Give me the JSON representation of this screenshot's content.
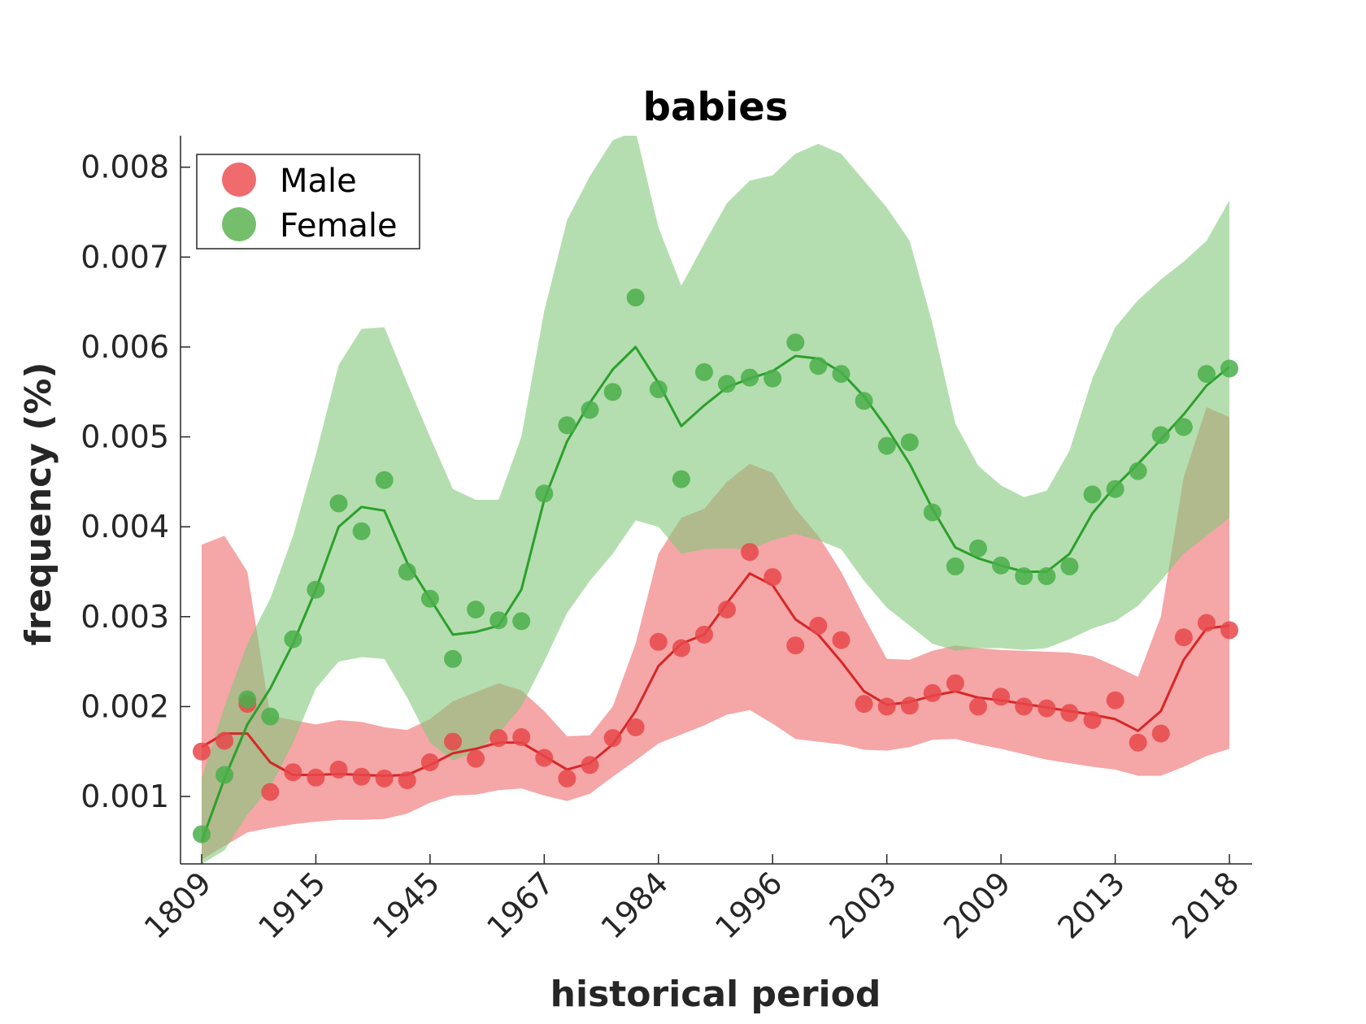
{
  "chart_data": {
    "type": "line",
    "title": "babies",
    "xlabel": "historical period",
    "ylabel": "frequency (%)",
    "ylim": [
      0.00025,
      0.00835
    ],
    "yticks": [
      0.001,
      0.002,
      0.003,
      0.004,
      0.005,
      0.006,
      0.007,
      0.008
    ],
    "ytick_labels": [
      "0.001",
      "0.002",
      "0.003",
      "0.004",
      "0.005",
      "0.006",
      "0.007",
      "0.008"
    ],
    "xtick_indices": [
      0,
      5,
      10,
      15,
      20,
      25,
      30,
      35,
      40,
      45
    ],
    "xtick_labels": [
      "1809",
      "1915",
      "1945",
      "1967",
      "1984",
      "1996",
      "2003",
      "2009",
      "2013",
      "2018"
    ],
    "legend": {
      "position": "top-left"
    },
    "grid": false,
    "series": [
      {
        "name": "Male",
        "color": "#d62728",
        "point_color": "#e8484a",
        "band_color": "#ef6b6d",
        "points": [
          0.0015,
          0.00162,
          0.00203,
          0.00105,
          0.00127,
          0.00121,
          0.0013,
          0.00122,
          0.0012,
          0.00118,
          0.00138,
          0.00161,
          0.00142,
          0.00165,
          0.00166,
          0.00143,
          0.0012,
          0.00135,
          0.00165,
          0.00177,
          0.00272,
          0.00265,
          0.0028,
          0.00308,
          0.00372,
          0.00344,
          0.00268,
          0.0029,
          0.00274,
          0.00203,
          0.002,
          0.00201,
          0.00215,
          0.00226,
          0.002,
          0.00211,
          0.002,
          0.00198,
          0.00193,
          0.00185,
          0.00207,
          0.0016,
          0.0017,
          0.00277,
          0.00293,
          0.00285
        ],
        "trend": [
          0.00155,
          0.0017,
          0.0017,
          0.00138,
          0.00124,
          0.00124,
          0.00125,
          0.00124,
          0.00123,
          0.00124,
          0.00135,
          0.00148,
          0.00153,
          0.0016,
          0.0016,
          0.00145,
          0.0013,
          0.00137,
          0.00158,
          0.00195,
          0.00245,
          0.0027,
          0.0028,
          0.00315,
          0.00348,
          0.00335,
          0.00297,
          0.0028,
          0.0025,
          0.00217,
          0.00202,
          0.00205,
          0.00212,
          0.00217,
          0.0021,
          0.00207,
          0.00203,
          0.00199,
          0.00195,
          0.00191,
          0.00186,
          0.00173,
          0.00195,
          0.00252,
          0.00287,
          0.0029
        ],
        "band_upper": [
          0.0038,
          0.0039,
          0.0035,
          0.0019,
          0.00185,
          0.0018,
          0.00185,
          0.00183,
          0.00177,
          0.00174,
          0.00186,
          0.00206,
          0.00216,
          0.00226,
          0.00218,
          0.00195,
          0.00167,
          0.00168,
          0.002,
          0.0027,
          0.0037,
          0.0041,
          0.0042,
          0.0045,
          0.0047,
          0.0046,
          0.0042,
          0.0039,
          0.0035,
          0.003,
          0.00253,
          0.00252,
          0.00262,
          0.00268,
          0.00265,
          0.00263,
          0.00262,
          0.00261,
          0.0026,
          0.00256,
          0.00245,
          0.00233,
          0.003,
          0.00455,
          0.00533,
          0.00522
        ],
        "band_lower": [
          0.0003,
          0.00045,
          0.0006,
          0.00065,
          0.00069,
          0.00072,
          0.00074,
          0.00074,
          0.00075,
          0.00081,
          0.00093,
          0.00101,
          0.00102,
          0.00107,
          0.00109,
          0.00101,
          0.00095,
          0.00103,
          0.00122,
          0.0014,
          0.00159,
          0.00169,
          0.00179,
          0.00191,
          0.00196,
          0.00181,
          0.00164,
          0.00161,
          0.00158,
          0.00152,
          0.00151,
          0.00155,
          0.00163,
          0.00164,
          0.00158,
          0.00153,
          0.00147,
          0.00141,
          0.00137,
          0.00133,
          0.0013,
          0.00123,
          0.00123,
          0.00133,
          0.00145,
          0.00153
        ]
      },
      {
        "name": "Female",
        "color": "#2ca02c",
        "point_color": "#4aaf4a",
        "band_color": "#82c87a",
        "points": [
          0.00058,
          0.00124,
          0.00208,
          0.00189,
          0.00275,
          0.0033,
          0.00426,
          0.00395,
          0.00452,
          0.0035,
          0.0032,
          0.00253,
          0.00308,
          0.00296,
          0.00295,
          0.00437,
          0.00513,
          0.0053,
          0.0055,
          0.00655,
          0.00553,
          0.00453,
          0.00572,
          0.00559,
          0.00566,
          0.00565,
          0.00605,
          0.00579,
          0.0057,
          0.0054,
          0.0049,
          0.00494,
          0.00416,
          0.00356,
          0.00376,
          0.00357,
          0.00345,
          0.00345,
          0.00356,
          0.00436,
          0.00442,
          0.00462,
          0.00502,
          0.00511,
          0.0057,
          0.00576
        ],
        "trend": [
          0.0005,
          0.0012,
          0.0018,
          0.0022,
          0.0027,
          0.0033,
          0.004,
          0.00422,
          0.00418,
          0.0036,
          0.0032,
          0.0028,
          0.00283,
          0.0029,
          0.0033,
          0.0043,
          0.00495,
          0.00538,
          0.00575,
          0.006,
          0.0056,
          0.00512,
          0.00535,
          0.00555,
          0.00565,
          0.00573,
          0.0059,
          0.00587,
          0.00572,
          0.00545,
          0.0051,
          0.0047,
          0.0042,
          0.00377,
          0.00365,
          0.00357,
          0.0035,
          0.0035,
          0.0037,
          0.00415,
          0.00445,
          0.0047,
          0.00497,
          0.00525,
          0.00557,
          0.00578
        ],
        "band_upper": [
          0.0012,
          0.002,
          0.0027,
          0.0032,
          0.0039,
          0.0048,
          0.0058,
          0.0062,
          0.00622,
          0.0056,
          0.005,
          0.00442,
          0.0043,
          0.0043,
          0.005,
          0.0064,
          0.00741,
          0.0079,
          0.0083,
          0.0084,
          0.00733,
          0.00668,
          0.00715,
          0.0076,
          0.00785,
          0.00791,
          0.00815,
          0.00826,
          0.00815,
          0.00785,
          0.00755,
          0.00718,
          0.00626,
          0.00515,
          0.00468,
          0.00446,
          0.00433,
          0.0044,
          0.00485,
          0.00565,
          0.00622,
          0.00652,
          0.00675,
          0.00695,
          0.00718,
          0.00763
        ],
        "band_lower": [
          0.00025,
          0.0004,
          0.0008,
          0.0011,
          0.0016,
          0.0022,
          0.0025,
          0.00255,
          0.00253,
          0.0021,
          0.0016,
          0.0014,
          0.0015,
          0.0017,
          0.002,
          0.0025,
          0.00304,
          0.0034,
          0.0037,
          0.00407,
          0.004,
          0.0037,
          0.00375,
          0.00376,
          0.00375,
          0.00385,
          0.00392,
          0.00385,
          0.00375,
          0.0034,
          0.0031,
          0.0029,
          0.0027,
          0.00262,
          0.00265,
          0.00265,
          0.00263,
          0.00265,
          0.00275,
          0.00287,
          0.00295,
          0.00312,
          0.0034,
          0.0037,
          0.0039,
          0.0041
        ]
      }
    ]
  }
}
